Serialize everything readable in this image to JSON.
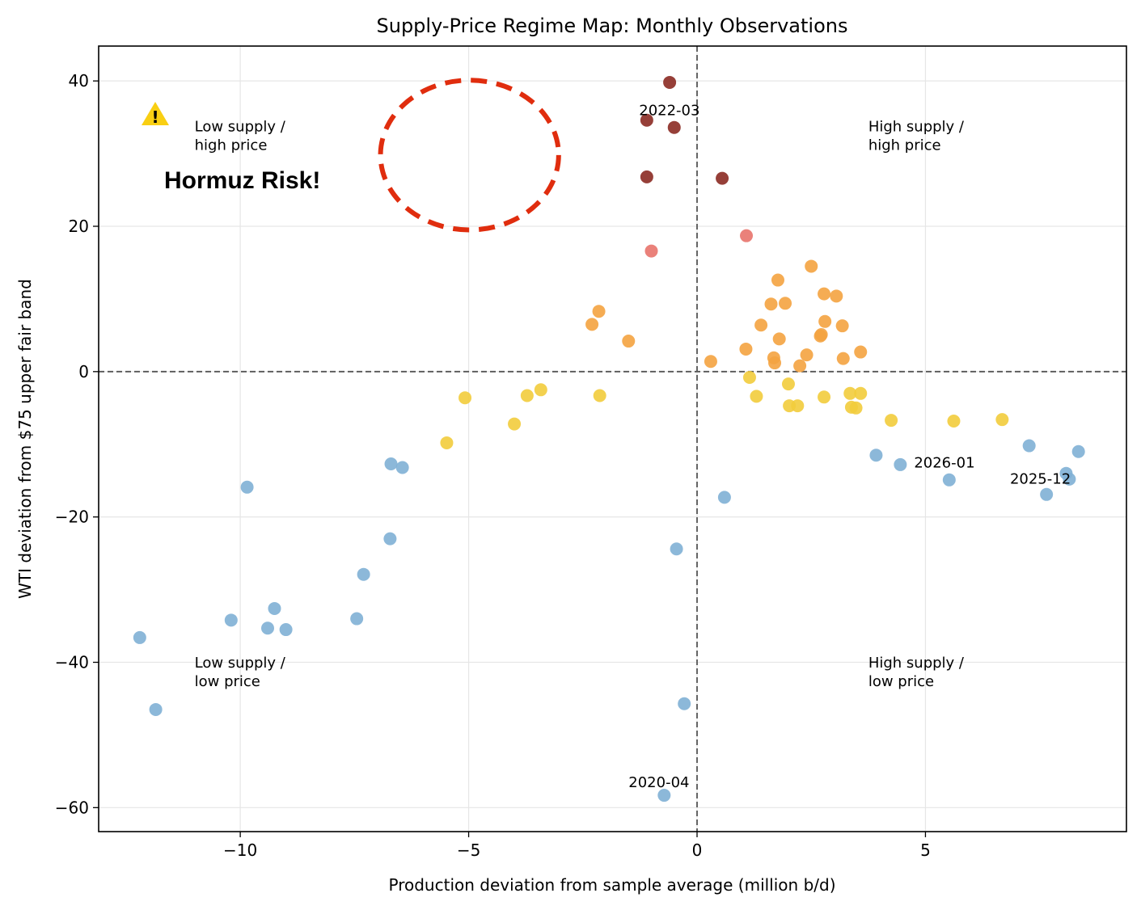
{
  "chart_data": {
    "type": "scatter",
    "title": "Supply-Price Regime Map: Monthly Observations",
    "xlabel": "Production deviation from sample average (million b/d)",
    "ylabel": "WTI deviation from $75 upper fair band",
    "xlim": [
      -13.1,
      9.4
    ],
    "ylim": [
      -63.3,
      44.8
    ],
    "xticks": [
      -10,
      -5,
      0,
      5
    ],
    "yticks": [
      -60,
      -40,
      -20,
      0,
      20,
      40
    ],
    "xtick_labels": [
      "−10",
      "−5",
      "0",
      "5"
    ],
    "ytick_labels": [
      "−60",
      "−40",
      "−20",
      "0",
      "20",
      "40"
    ],
    "grid": true,
    "reference_lines": {
      "x": 0,
      "y": 0,
      "style": "dashed"
    },
    "colors": {
      "dark_red": "#8b2a22",
      "light_red": "#e8736b",
      "orange": "#f4a340",
      "yellow": "#f2cc3c",
      "blue": "#80b0d5",
      "alert_ellipse": "#e02d0e",
      "warning": "#f9cf13"
    },
    "quadrant_labels": [
      {
        "line1": "Low supply /",
        "line2": "high price",
        "x": -11.0,
        "y": 30.5
      },
      {
        "line1": "High supply /",
        "line2": "high price",
        "x": 3.75,
        "y": 30.5
      },
      {
        "line1": "Low supply /",
        "line2": "low price",
        "x": -11.0,
        "y": -43.3
      },
      {
        "line1": "High supply /",
        "line2": "low price",
        "x": 3.75,
        "y": -43.3
      }
    ],
    "point_labels": [
      {
        "text": "2022-03",
        "x": -1.27,
        "y": 35.3
      },
      {
        "text": "2026-01",
        "x": 4.75,
        "y": -13.2
      },
      {
        "text": "2025-12",
        "x": 6.85,
        "y": -15.4
      },
      {
        "text": "2020-04",
        "x": -1.5,
        "y": -57.2
      }
    ],
    "annotation": {
      "text": "Hormuz Risk!",
      "icon": "warning-icon",
      "icon_glyph": "!",
      "ellipse_center": [
        -4.98,
        29.8
      ],
      "ellipse_radius": [
        1.95,
        10.3
      ]
    },
    "series": [
      {
        "color": "dark_red",
        "points": [
          [
            -0.6,
            39.8
          ],
          [
            -1.1,
            34.6
          ],
          [
            -0.5,
            33.6
          ],
          [
            -1.1,
            26.8
          ],
          [
            0.55,
            26.6
          ]
        ]
      },
      {
        "color": "light_red",
        "points": [
          [
            -1.0,
            16.6
          ],
          [
            1.08,
            18.7
          ]
        ]
      },
      {
        "color": "orange",
        "points": [
          [
            -2.3,
            6.5
          ],
          [
            -2.15,
            8.3
          ],
          [
            -1.5,
            4.2
          ],
          [
            0.3,
            1.4
          ],
          [
            1.07,
            3.1
          ],
          [
            1.4,
            6.4
          ],
          [
            1.62,
            9.3
          ],
          [
            1.68,
            1.9
          ],
          [
            1.7,
            1.2
          ],
          [
            1.77,
            12.6
          ],
          [
            1.8,
            4.5
          ],
          [
            1.93,
            9.4
          ],
          [
            2.25,
            0.8
          ],
          [
            2.4,
            2.3
          ],
          [
            2.5,
            14.5
          ],
          [
            2.7,
            4.9
          ],
          [
            2.72,
            5.1
          ],
          [
            2.78,
            10.7
          ],
          [
            2.8,
            6.9
          ],
          [
            3.05,
            10.4
          ],
          [
            3.18,
            6.3
          ],
          [
            3.2,
            1.8
          ],
          [
            3.58,
            2.7
          ]
        ]
      },
      {
        "color": "yellow",
        "points": [
          [
            -5.48,
            -9.8
          ],
          [
            -5.08,
            -3.6
          ],
          [
            -4.0,
            -7.2
          ],
          [
            -3.72,
            -3.3
          ],
          [
            -3.42,
            -2.5
          ],
          [
            -2.13,
            -3.3
          ],
          [
            1.15,
            -0.8
          ],
          [
            1.3,
            -3.4
          ],
          [
            2.0,
            -1.7
          ],
          [
            2.02,
            -4.7
          ],
          [
            2.2,
            -4.7
          ],
          [
            2.78,
            -3.5
          ],
          [
            3.35,
            -3.0
          ],
          [
            3.38,
            -4.9
          ],
          [
            3.48,
            -5.0
          ],
          [
            3.58,
            -3.0
          ],
          [
            4.25,
            -6.7
          ],
          [
            5.62,
            -6.8
          ],
          [
            6.68,
            -6.6
          ]
        ]
      },
      {
        "color": "blue",
        "points": [
          [
            -12.2,
            -36.6
          ],
          [
            -11.85,
            -46.5
          ],
          [
            -10.2,
            -34.2
          ],
          [
            -9.85,
            -15.9
          ],
          [
            -9.4,
            -35.3
          ],
          [
            -9.25,
            -32.6
          ],
          [
            -9.0,
            -35.5
          ],
          [
            -7.45,
            -34.0
          ],
          [
            -7.3,
            -27.9
          ],
          [
            -6.72,
            -23.0
          ],
          [
            -6.7,
            -12.7
          ],
          [
            -6.45,
            -13.2
          ],
          [
            -0.72,
            -58.3
          ],
          [
            -0.45,
            -24.4
          ],
          [
            -0.28,
            -45.7
          ],
          [
            0.6,
            -17.3
          ],
          [
            3.92,
            -11.5
          ],
          [
            4.45,
            -12.8
          ],
          [
            5.52,
            -14.9
          ],
          [
            7.27,
            -10.2
          ],
          [
            7.65,
            -16.9
          ],
          [
            8.08,
            -14.0
          ],
          [
            8.15,
            -14.8
          ],
          [
            8.35,
            -11.0
          ]
        ]
      }
    ]
  }
}
